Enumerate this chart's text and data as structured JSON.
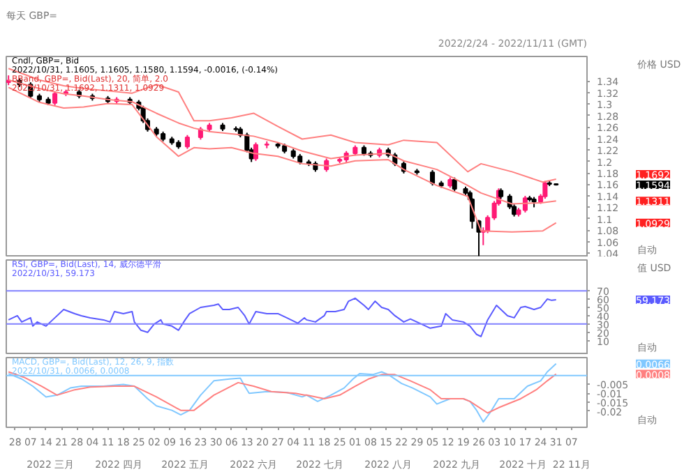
{
  "chart_data": [
    {
      "type": "candlestick",
      "title": "每天 GBP=",
      "subtitle": "2022/2/24 - 2022/11/11 (GMT)",
      "ylabel": "价格 USD",
      "annotations": [
        "Cndl, GBP=, Bid",
        "2022/10/31, 1.1605, 1.1605, 1.1580, 1.1594, -0.0016, (-0.14%)",
        "BBand, GBP=, Bid(Last), 20, 简单, 2.0",
        "2022/10/31, 1.1692, 1.1311, 1.0929",
        "1.1692",
        "1.1594",
        "1.1311",
        "1.0929",
        {
          "text": "自动"
        }
      ],
      "x": [
        "2022-02-25",
        "2022-03-02",
        "2022-03-07",
        "2022-03-11",
        "2022-03-15",
        "2022-03-18",
        "2022-03-23",
        "2022-03-29",
        "2022-04-04",
        "2022-04-11",
        "2022-04-15",
        "2022-04-21",
        "2022-04-25",
        "2022-04-27",
        "2022-04-29",
        "2022-05-03",
        "2022-05-06",
        "2022-05-10",
        "2022-05-13",
        "2022-05-17",
        "2022-05-23",
        "2022-05-27",
        "2022-06-02",
        "2022-06-08",
        "2022-06-10",
        "2022-06-13",
        "2022-06-15",
        "2022-06-17",
        "2022-06-22",
        "2022-06-27",
        "2022-06-30",
        "2022-07-04",
        "2022-07-07",
        "2022-07-11",
        "2022-07-14",
        "2022-07-19",
        "2022-07-25",
        "2022-07-28",
        "2022-08-01",
        "2022-08-05",
        "2022-08-08",
        "2022-08-12",
        "2022-08-16",
        "2022-08-19",
        "2022-08-23",
        "2022-08-29",
        "2022-09-05",
        "2022-09-09",
        "2022-09-13",
        "2022-09-15",
        "2022-09-20",
        "2022-09-22",
        "2022-09-23",
        "2022-09-26",
        "2022-09-28",
        "2022-09-30",
        "2022-10-03",
        "2022-10-05",
        "2022-10-06",
        "2022-10-10",
        "2022-10-12",
        "2022-10-14",
        "2022-10-17",
        "2022-10-19",
        "2022-10-21",
        "2022-10-24",
        "2022-10-26",
        "2022-10-28",
        "2022-10-31"
      ],
      "ohlc": [
        [
          1.338,
          1.35,
          1.333,
          1.341
        ],
        [
          1.341,
          1.345,
          1.33,
          1.334
        ],
        [
          1.334,
          1.338,
          1.31,
          1.314
        ],
        [
          1.314,
          1.318,
          1.304,
          1.308
        ],
        [
          1.308,
          1.312,
          1.298,
          1.302
        ],
        [
          1.302,
          1.322,
          1.298,
          1.318
        ],
        [
          1.318,
          1.325,
          1.314,
          1.321
        ],
        [
          1.321,
          1.325,
          1.31,
          1.314
        ],
        [
          1.314,
          1.318,
          1.306,
          1.31
        ],
        [
          1.31,
          1.314,
          1.301,
          1.305
        ],
        [
          1.305,
          1.312,
          1.301,
          1.308
        ],
        [
          1.308,
          1.312,
          1.299,
          1.303
        ],
        [
          1.303,
          1.307,
          1.289,
          1.293
        ],
        [
          1.293,
          1.297,
          1.267,
          1.271
        ],
        [
          1.271,
          1.275,
          1.252,
          1.256
        ],
        [
          1.256,
          1.26,
          1.244,
          1.248
        ],
        [
          1.248,
          1.252,
          1.235,
          1.239
        ],
        [
          1.239,
          1.243,
          1.229,
          1.233
        ],
        [
          1.233,
          1.237,
          1.222,
          1.226
        ],
        [
          1.226,
          1.246,
          1.222,
          1.242
        ],
        [
          1.242,
          1.26,
          1.238,
          1.256
        ],
        [
          1.256,
          1.267,
          1.252,
          1.263
        ],
        [
          1.263,
          1.267,
          1.253,
          1.257
        ],
        [
          1.257,
          1.261,
          1.252,
          1.256
        ],
        [
          1.256,
          1.26,
          1.242,
          1.246
        ],
        [
          1.246,
          1.25,
          1.216,
          1.22
        ],
        [
          1.22,
          1.224,
          1.199,
          1.205
        ],
        [
          1.205,
          1.233,
          1.201,
          1.229
        ],
        [
          1.229,
          1.235,
          1.223,
          1.23
        ],
        [
          1.23,
          1.233,
          1.223,
          1.227
        ],
        [
          1.227,
          1.231,
          1.214,
          1.218
        ],
        [
          1.218,
          1.222,
          1.205,
          1.209
        ],
        [
          1.209,
          1.213,
          1.195,
          1.199
        ],
        [
          1.199,
          1.203,
          1.192,
          1.196
        ],
        [
          1.196,
          1.2,
          1.182,
          1.186
        ],
        [
          1.186,
          1.205,
          1.182,
          1.201
        ],
        [
          1.201,
          1.207,
          1.197,
          1.203
        ],
        [
          1.203,
          1.218,
          1.197,
          1.214
        ],
        [
          1.214,
          1.228,
          1.21,
          1.224
        ],
        [
          1.224,
          1.228,
          1.21,
          1.214
        ],
        [
          1.214,
          1.218,
          1.207,
          1.211
        ],
        [
          1.211,
          1.224,
          1.207,
          1.22
        ],
        [
          1.22,
          1.224,
          1.207,
          1.211
        ],
        [
          1.211,
          1.215,
          1.192,
          1.196
        ],
        [
          1.196,
          1.2,
          1.179,
          1.183
        ],
        [
          1.183,
          1.187,
          1.177,
          1.181
        ],
        [
          1.181,
          1.185,
          1.158,
          1.162
        ],
        [
          1.162,
          1.166,
          1.154,
          1.158
        ],
        [
          1.158,
          1.172,
          1.154,
          1.168
        ],
        [
          1.168,
          1.172,
          1.148,
          1.152
        ],
        [
          1.152,
          1.156,
          1.141,
          1.145
        ],
        [
          1.145,
          1.149,
          1.13,
          1.134
        ],
        [
          1.134,
          1.136,
          1.083,
          1.096
        ],
        [
          1.096,
          1.098,
          1.035,
          1.077
        ],
        [
          1.077,
          1.085,
          1.054,
          1.079
        ],
        [
          1.079,
          1.106,
          1.075,
          1.102
        ],
        [
          1.102,
          1.131,
          1.098,
          1.127
        ],
        [
          1.127,
          1.153,
          1.123,
          1.149
        ],
        [
          1.149,
          1.153,
          1.135,
          1.139
        ],
        [
          1.139,
          1.143,
          1.117,
          1.121
        ],
        [
          1.121,
          1.125,
          1.104,
          1.108
        ],
        [
          1.108,
          1.119,
          1.104,
          1.115
        ],
        [
          1.115,
          1.14,
          1.111,
          1.136
        ],
        [
          1.136,
          1.14,
          1.13,
          1.134
        ],
        [
          1.134,
          1.138,
          1.12,
          1.13
        ],
        [
          1.13,
          1.143,
          1.126,
          1.139
        ],
        [
          1.139,
          1.166,
          1.135,
          1.162
        ],
        [
          1.162,
          1.166,
          1.157,
          1.1605
        ],
        [
          1.1605,
          1.1605,
          1.158,
          1.1594
        ]
      ],
      "series": [
        {
          "type": "line",
          "color": "#ff8080",
          "x": [
            "2022-02-25",
            "2022-03-11",
            "2022-03-22",
            "2022-03-31",
            "2022-04-11",
            "2022-04-22",
            "2022-05-03",
            "2022-05-13",
            "2022-05-20",
            "2022-05-27",
            "2022-06-06",
            "2022-06-16",
            "2022-06-27",
            "2022-07-08",
            "2022-07-21",
            "2022-08-01",
            "2022-08-16",
            "2022-08-23",
            "2022-09-07",
            "2022-09-21",
            "2022-09-27",
            "2022-10-11",
            "2022-10-25",
            "2022-10-31"
          ],
          "values": [
            1.362,
            1.342,
            1.332,
            1.327,
            1.323,
            1.319,
            1.334,
            1.321,
            1.271,
            1.271,
            1.276,
            1.284,
            1.261,
            1.239,
            1.246,
            1.233,
            1.229,
            1.237,
            1.233,
            1.182,
            1.196,
            1.182,
            1.164,
            1.1692
          ]
        },
        {
          "type": "line",
          "color": "#ff8080",
          "x": [
            "2022-02-25",
            "2022-03-11",
            "2022-03-22",
            "2022-03-31",
            "2022-04-11",
            "2022-04-22",
            "2022-05-03",
            "2022-05-13",
            "2022-05-20",
            "2022-05-27",
            "2022-06-06",
            "2022-06-16",
            "2022-06-27",
            "2022-07-08",
            "2022-07-21",
            "2022-08-01",
            "2022-08-16",
            "2022-08-23",
            "2022-09-07",
            "2022-09-21",
            "2022-09-27",
            "2022-10-11",
            "2022-10-25",
            "2022-10-31"
          ],
          "values": [
            1.342,
            1.327,
            1.318,
            1.314,
            1.308,
            1.304,
            1.284,
            1.267,
            1.258,
            1.252,
            1.248,
            1.244,
            1.233,
            1.218,
            1.205,
            1.211,
            1.214,
            1.201,
            1.186,
            1.158,
            1.145,
            1.126,
            1.128,
            1.1311
          ]
        },
        {
          "type": "line",
          "color": "#ff8080",
          "x": [
            "2022-02-25",
            "2022-03-11",
            "2022-03-22",
            "2022-03-31",
            "2022-04-11",
            "2022-04-22",
            "2022-05-03",
            "2022-05-13",
            "2022-05-20",
            "2022-05-27",
            "2022-06-06",
            "2022-06-16",
            "2022-06-27",
            "2022-07-08",
            "2022-07-21",
            "2022-08-01",
            "2022-08-16",
            "2022-08-23",
            "2022-09-07",
            "2022-09-21",
            "2022-09-27",
            "2022-10-11",
            "2022-10-25",
            "2022-10-31"
          ],
          "values": [
            1.329,
            1.303,
            1.293,
            1.295,
            1.301,
            1.299,
            1.243,
            1.209,
            1.224,
            1.222,
            1.224,
            1.214,
            1.209,
            1.196,
            1.192,
            1.201,
            1.203,
            1.186,
            1.158,
            1.139,
            1.079,
            1.077,
            1.079,
            1.0929
          ]
        }
      ],
      "xlim": [
        "2022-02-24",
        "2022-11-14"
      ],
      "ylim": [
        1.033,
        1.383
      ],
      "yticks": [
        1.04,
        1.06,
        1.08,
        1.1,
        1.12,
        1.14,
        1.16,
        1.18,
        1.2,
        1.22,
        1.24,
        1.26,
        1.28,
        1.3,
        1.32,
        1.34
      ],
      "tick_labels": "y"
    },
    {
      "type": "line",
      "title": "RSI, GBP=, Bid(Last), 14, 威尔德平滑",
      "subtitle": "2022/10/31, 59.173",
      "ylabel": "值 USD",
      "annotations": [
        "59.173",
        {
          "text": "自动"
        }
      ],
      "series": [
        {
          "color": "#5a5aff",
          "x": [
            "2022-02-25",
            "2022-03-01",
            "2022-03-03",
            "2022-03-07",
            "2022-03-08",
            "2022-03-10",
            "2022-03-14",
            "2022-03-17",
            "2022-03-22",
            "2022-03-27",
            "2022-03-30",
            "2022-04-03",
            "2022-04-09",
            "2022-04-12",
            "2022-04-14",
            "2022-04-18",
            "2022-04-22",
            "2022-04-23",
            "2022-04-26",
            "2022-04-29",
            "2022-05-02",
            "2022-05-05",
            "2022-05-06",
            "2022-05-10",
            "2022-05-13",
            "2022-05-16",
            "2022-05-18",
            "2022-05-23",
            "2022-05-29",
            "2022-05-31",
            "2022-06-02",
            "2022-06-05",
            "2022-06-09",
            "2022-06-12",
            "2022-06-14",
            "2022-06-17",
            "2022-06-22",
            "2022-06-27",
            "2022-07-01",
            "2022-07-06",
            "2022-07-09",
            "2022-07-10",
            "2022-07-14",
            "2022-07-18",
            "2022-07-19",
            "2022-07-23",
            "2022-07-27",
            "2022-07-29",
            "2022-08-01",
            "2022-08-05",
            "2022-08-07",
            "2022-08-10",
            "2022-08-13",
            "2022-08-16",
            "2022-08-19",
            "2022-08-23",
            "2022-08-26",
            "2022-08-31",
            "2022-09-04",
            "2022-09-09",
            "2022-09-11",
            "2022-09-14",
            "2022-09-19",
            "2022-09-22",
            "2022-09-25",
            "2022-09-27",
            "2022-09-30",
            "2022-10-04",
            "2022-10-09",
            "2022-10-12",
            "2022-10-15",
            "2022-10-17",
            "2022-10-21",
            "2022-10-24",
            "2022-10-27",
            "2022-10-29",
            "2022-10-31"
          ],
          "values": [
            35,
            40,
            32.5,
            37.5,
            27.5,
            32.5,
            27.5,
            35,
            47.5,
            42.5,
            40,
            37.5,
            35,
            32.5,
            45,
            42.5,
            45,
            32.5,
            22.5,
            20,
            30,
            35,
            30,
            27.5,
            22.5,
            35,
            42.5,
            50,
            52.5,
            54,
            47.5,
            47.5,
            50,
            40,
            30,
            45,
            42.5,
            42.5,
            37.5,
            31,
            37.5,
            35,
            32.5,
            40,
            45,
            45,
            47.5,
            57.5,
            61,
            52.5,
            47.5,
            57.5,
            50,
            47.5,
            40,
            32.5,
            36,
            30,
            25,
            27.5,
            42.5,
            35,
            32.5,
            27.5,
            17.5,
            15,
            35,
            52.5,
            40,
            37.5,
            50,
            51,
            47.5,
            50,
            60,
            58.5,
            59.173
          ]
        }
      ],
      "ref_lines": [
        {
          "axis": "y",
          "value": 70,
          "color": "#8080ff"
        },
        {
          "axis": "y",
          "value": 30,
          "color": "#8080ff"
        }
      ],
      "xlim": [
        "2022-02-24",
        "2022-11-14"
      ],
      "ylim": [
        -7,
        107
      ],
      "yticks": [
        10,
        20,
        30,
        40,
        50,
        60,
        70
      ],
      "tick_labels": "y"
    },
    {
      "type": "line",
      "title": "MACD, GBP=, Bid(Last), 12, 26, 9, 指数",
      "subtitle": "2022/10/31, 0.0066, 0.0008",
      "annotations": [
        "0.0066",
        "0.0008",
        {
          "text": "自动"
        }
      ],
      "series": [
        {
          "color": "#80c8ff",
          "x": [
            "2022-02-25",
            "2022-03-03",
            "2022-03-08",
            "2022-03-14",
            "2022-03-19",
            "2022-03-25",
            "2022-03-30",
            "2022-04-09",
            "2022-04-18",
            "2022-04-23",
            "2022-04-29",
            "2022-05-03",
            "2022-05-10",
            "2022-05-14",
            "2022-05-18",
            "2022-05-23",
            "2022-05-29",
            "2022-06-05",
            "2022-06-10",
            "2022-06-12",
            "2022-06-14",
            "2022-06-22",
            "2022-07-01",
            "2022-07-08",
            "2022-07-10",
            "2022-07-15",
            "2022-07-21",
            "2022-07-27",
            "2022-07-31",
            "2022-08-03",
            "2022-08-09",
            "2022-08-13",
            "2022-08-16",
            "2022-08-22",
            "2022-08-27",
            "2022-09-04",
            "2022-09-07",
            "2022-09-13",
            "2022-09-19",
            "2022-09-22",
            "2022-09-25",
            "2022-09-28",
            "2022-10-01",
            "2022-10-05",
            "2022-10-12",
            "2022-10-18",
            "2022-10-24",
            "2022-10-27",
            "2022-10-31"
          ],
          "values": [
            0.001,
            -0.002,
            -0.006,
            -0.012,
            -0.011,
            -0.007,
            -0.006,
            -0.006,
            -0.005,
            -0.006,
            -0.013,
            -0.017,
            -0.0195,
            -0.022,
            -0.0195,
            -0.011,
            -0.003,
            -0.002,
            -0.0015,
            -0.006,
            -0.01,
            -0.009,
            -0.0095,
            -0.012,
            -0.011,
            -0.0145,
            -0.011,
            -0.007,
            -0.002,
            0.001,
            0.0005,
            0.002,
            0.0005,
            -0.0045,
            -0.007,
            -0.012,
            -0.016,
            -0.013,
            -0.013,
            -0.0145,
            -0.0195,
            -0.026,
            -0.021,
            -0.013,
            -0.013,
            -0.006,
            -0.003,
            0.002,
            0.0066
          ]
        },
        {
          "color": "#ff8080",
          "x": [
            "2022-02-25",
            "2022-03-04",
            "2022-03-12",
            "2022-03-19",
            "2022-03-27",
            "2022-04-03",
            "2022-04-14",
            "2022-04-23",
            "2022-05-03",
            "2022-05-14",
            "2022-05-20",
            "2022-05-29",
            "2022-06-09",
            "2022-06-16",
            "2022-06-24",
            "2022-07-05",
            "2022-07-09",
            "2022-07-10",
            "2022-07-18",
            "2022-07-25",
            "2022-08-01",
            "2022-08-07",
            "2022-08-13",
            "2022-08-19",
            "2022-08-26",
            "2022-09-04",
            "2022-09-09",
            "2022-09-19",
            "2022-09-22",
            "2022-09-30",
            "2022-10-05",
            "2022-10-15",
            "2022-10-22",
            "2022-10-27",
            "2022-10-31"
          ],
          "values": [
            0.002,
            -0.001,
            -0.006,
            -0.011,
            -0.008,
            -0.0065,
            -0.006,
            -0.006,
            -0.012,
            -0.0195,
            -0.0195,
            -0.011,
            -0.004,
            -0.006,
            -0.009,
            -0.01,
            -0.011,
            -0.011,
            -0.013,
            -0.011,
            -0.006,
            -0.002,
            0.0005,
            0.0005,
            -0.003,
            -0.008,
            -0.013,
            -0.013,
            -0.0145,
            -0.021,
            -0.018,
            -0.013,
            -0.008,
            -0.003,
            0.0008
          ]
        }
      ],
      "ref_lines": [
        {
          "axis": "y",
          "value": 0,
          "color": "#80c8ff"
        }
      ],
      "xlim": [
        "2022-02-24",
        "2022-11-14"
      ],
      "ylim": [
        -0.029,
        0.01
      ],
      "yticks": [
        -0.02,
        -0.015,
        -0.01,
        -0.005
      ],
      "xticks": [
        {
          "value": "2022-02-28",
          "label": "28"
        },
        {
          "value": "2022-03-07",
          "label": "07"
        },
        {
          "value": "2022-03-14",
          "label": "14"
        },
        {
          "value": "2022-03-21",
          "label": "21"
        },
        {
          "value": "2022-03-28",
          "label": "28"
        },
        {
          "value": "2022-04-04",
          "label": "04"
        },
        {
          "value": "2022-04-11",
          "label": "11"
        },
        {
          "value": "2022-04-18",
          "label": "18"
        },
        {
          "value": "2022-04-25",
          "label": "25"
        },
        {
          "value": "2022-05-02",
          "label": "02"
        },
        {
          "value": "2022-05-09",
          "label": "09"
        },
        {
          "value": "2022-05-16",
          "label": "16"
        },
        {
          "value": "2022-05-23",
          "label": "23"
        },
        {
          "value": "2022-05-30",
          "label": "30"
        },
        {
          "value": "2022-06-06",
          "label": "06"
        },
        {
          "value": "2022-06-13",
          "label": "13"
        },
        {
          "value": "2022-06-20",
          "label": "20"
        },
        {
          "value": "2022-06-27",
          "label": "27"
        },
        {
          "value": "2022-07-04",
          "label": "04"
        },
        {
          "value": "2022-07-11",
          "label": "11"
        },
        {
          "value": "2022-07-18",
          "label": "18"
        },
        {
          "value": "2022-07-25",
          "label": "25"
        },
        {
          "value": "2022-08-01",
          "label": "01"
        },
        {
          "value": "2022-08-08",
          "label": "08"
        },
        {
          "value": "2022-08-15",
          "label": "15"
        },
        {
          "value": "2022-08-22",
          "label": "22"
        },
        {
          "value": "2022-08-29",
          "label": "29"
        },
        {
          "value": "2022-09-05",
          "label": "05"
        },
        {
          "value": "2022-09-12",
          "label": "12"
        },
        {
          "value": "2022-09-19",
          "label": "19"
        },
        {
          "value": "2022-09-26",
          "label": "26"
        },
        {
          "value": "2022-10-03",
          "label": "03"
        },
        {
          "value": "2022-10-10",
          "label": "10"
        },
        {
          "value": "2022-10-17",
          "label": "17"
        },
        {
          "value": "2022-10-24",
          "label": "24"
        },
        {
          "value": "2022-10-31",
          "label": "31"
        },
        {
          "value": "2022-11-07",
          "label": "07"
        }
      ],
      "x2lim": [
        "2022-02-24",
        "2022-11-14"
      ],
      "x2ticks": [
        {
          "value": "2022-03-16",
          "label": "2022 三月"
        },
        {
          "value": "2022-04-16",
          "label": "2022 四月"
        },
        {
          "value": "2022-05-16",
          "label": "2022 五月"
        },
        {
          "value": "2022-06-16",
          "label": "2022 六月"
        },
        {
          "value": "2022-07-16",
          "label": "2022 七月"
        },
        {
          "value": "2022-08-16",
          "label": "2022 八月"
        },
        {
          "value": "2022-09-16",
          "label": "2022 九月"
        },
        {
          "value": "2022-10-16",
          "label": "2022 十月"
        },
        {
          "value": "2022-11-07",
          "label": "22 11月"
        }
      ]
    }
  ]
}
